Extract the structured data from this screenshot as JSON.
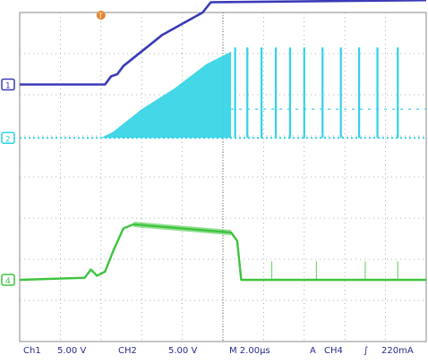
{
  "chart_data": {
    "type": "line",
    "title": "",
    "xlabel": "",
    "ylabel": "",
    "grid": true,
    "divisions": {
      "x": 10,
      "y": 8
    },
    "trigger_markers": {
      "top": "T"
    },
    "series": [
      {
        "channel_label": "1",
        "color": "#3a3ab8",
        "style": "ramp",
        "baseline_div": 1.75,
        "points": [
          [
            0,
            1.75
          ],
          [
            2.1,
            1.75
          ],
          [
            2.25,
            1.55
          ],
          [
            2.4,
            1.5
          ],
          [
            2.55,
            1.3
          ],
          [
            3.5,
            0.55
          ],
          [
            4.5,
            0.0
          ],
          [
            4.7,
            -0.25
          ],
          [
            10,
            -0.3
          ]
        ]
      },
      {
        "channel_label": "2",
        "color": "#2fd3e6",
        "style": "switching",
        "baseline_div": 3.05,
        "fill_envelope": [
          [
            2.0,
            3.05
          ],
          [
            2.3,
            2.9
          ],
          [
            3.0,
            2.35
          ],
          [
            3.8,
            1.85
          ],
          [
            4.6,
            1.25
          ],
          [
            5.2,
            0.95
          ],
          [
            5.2,
            3.05
          ]
        ],
        "spike_times_div": [
          5.3,
          5.6,
          5.95,
          6.3,
          6.65,
          7.0,
          7.45,
          7.9,
          8.35,
          8.8,
          9.3
        ],
        "spike_top_div": 0.85
      },
      {
        "channel_label": "4",
        "color": "#3ec43e",
        "style": "step",
        "baseline_div": 6.5,
        "points": [
          [
            0,
            6.5
          ],
          [
            1.6,
            6.45
          ],
          [
            1.75,
            6.25
          ],
          [
            1.9,
            6.4
          ],
          [
            2.1,
            6.3
          ],
          [
            2.3,
            5.8
          ],
          [
            2.55,
            5.25
          ],
          [
            2.8,
            5.15
          ],
          [
            5.2,
            5.35
          ],
          [
            5.35,
            5.55
          ],
          [
            5.45,
            6.5
          ],
          [
            10,
            6.5
          ]
        ],
        "spike_times_div": [
          6.2,
          7.3,
          8.5,
          9.3
        ]
      }
    ]
  },
  "status_bar": {
    "ch1": "Ch1",
    "ch1_scale": "5.00 V",
    "ch2": "CH2",
    "ch2_scale": "5.00 V",
    "timebase": "M 2.00μs",
    "trigger_source": "A",
    "trigger_ch": "CH4",
    "trigger_level": "220mA"
  }
}
